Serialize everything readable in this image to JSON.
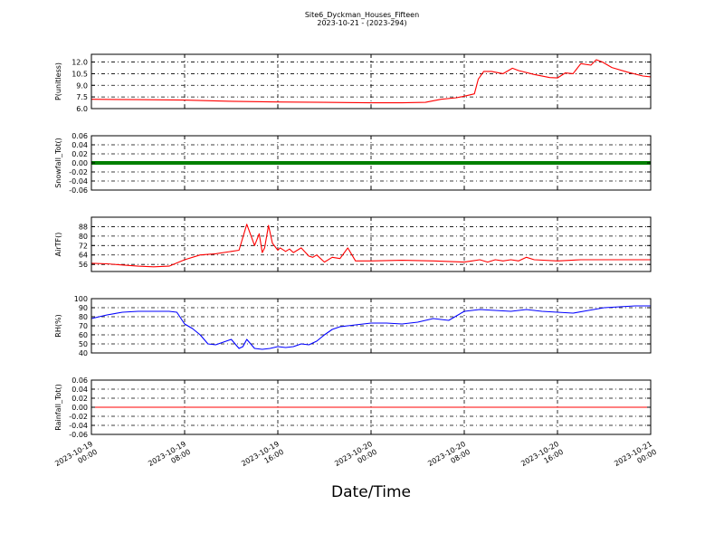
{
  "chart_data": [
    {
      "type": "line",
      "title": "Site6_Dyckman_Houses_Fifteen",
      "subtitle": "2023-10-21 - (2023-294)",
      "ylabel": "P(unitless)",
      "ylim": [
        6.0,
        13.0
      ],
      "yticks": [
        "6.0",
        "7.5",
        "9.0",
        "10.5",
        "12.0"
      ],
      "ytick_values": [
        6.0,
        7.5,
        9.0,
        10.5,
        12.0
      ],
      "grid": true,
      "color": "#ff0000",
      "series": [
        {
          "x": [
            0,
            6,
            12,
            18,
            24,
            30,
            36,
            40,
            43,
            45,
            47,
            48,
            49.3,
            49.8,
            50.5,
            51.5,
            53,
            54.2,
            55,
            57,
            59,
            60,
            61,
            62,
            63,
            64.3,
            65,
            65.8,
            67,
            69,
            71,
            72
          ],
          "y": [
            7.2,
            7.15,
            7.1,
            6.95,
            6.85,
            6.8,
            6.75,
            6.75,
            6.8,
            7.2,
            7.4,
            7.6,
            7.9,
            9.8,
            10.8,
            10.8,
            10.5,
            11.2,
            10.9,
            10.4,
            10.0,
            9.95,
            10.6,
            10.5,
            11.8,
            11.6,
            12.3,
            12.0,
            11.3,
            10.7,
            10.2,
            10.1
          ]
        }
      ]
    },
    {
      "type": "line",
      "ylabel": "Snowfall_Tot()",
      "ylim": [
        -0.06,
        0.06
      ],
      "yticks": [
        "-0.06",
        "-0.04",
        "-0.02",
        "0.00",
        "0.02",
        "0.04",
        "0.06"
      ],
      "ytick_values": [
        -0.06,
        -0.04,
        -0.02,
        0.0,
        0.02,
        0.04,
        0.06
      ],
      "grid": true,
      "color": "#008000",
      "series": [
        {
          "x": [
            0,
            72
          ],
          "y": [
            0.0,
            0.0
          ]
        }
      ]
    },
    {
      "type": "line",
      "ylabel": "AirTF()",
      "ylim": [
        50,
        96
      ],
      "yticks": [
        "56",
        "64",
        "72",
        "80",
        "88"
      ],
      "ytick_values": [
        56,
        64,
        72,
        80,
        88
      ],
      "grid": true,
      "color": "#ff0000",
      "series": [
        {
          "x": [
            0,
            2,
            4,
            6,
            8,
            10,
            12,
            14,
            16,
            18,
            19,
            20,
            21,
            21.6,
            22,
            22.3,
            22.8,
            23.3,
            24,
            24.3,
            25,
            25.5,
            26,
            27,
            28,
            28.5,
            29,
            30,
            31,
            32,
            33,
            34,
            35,
            36,
            40,
            44,
            48,
            49,
            50,
            51,
            52,
            53,
            54,
            55,
            56,
            57,
            60,
            63,
            66,
            69,
            72
          ],
          "y": [
            57,
            56.5,
            55.5,
            54.5,
            54,
            54.5,
            60,
            64,
            65,
            67,
            68,
            90,
            72,
            82,
            66,
            70,
            89,
            74,
            68,
            70,
            67,
            69,
            66,
            70,
            63,
            62,
            64,
            58,
            62,
            61,
            70,
            59,
            59,
            59,
            59.5,
            59,
            58,
            59,
            60,
            58,
            60,
            59,
            60,
            59,
            62,
            60,
            59,
            60,
            60,
            60,
            60
          ]
        }
      ]
    },
    {
      "type": "line",
      "ylabel": "RH(%)",
      "ylim": [
        40,
        100
      ],
      "yticks": [
        "40",
        "50",
        "60",
        "70",
        "80",
        "90",
        "100"
      ],
      "ytick_values": [
        40,
        50,
        60,
        70,
        80,
        90,
        100
      ],
      "grid": true,
      "color": "#0000ff",
      "series": [
        {
          "x": [
            0,
            2,
            4,
            6,
            8,
            10,
            11,
            12,
            13,
            14,
            15,
            16,
            17,
            18,
            19,
            19.5,
            20,
            21,
            22,
            23,
            24,
            25,
            26,
            27,
            28,
            29,
            30,
            31,
            32,
            33,
            34,
            36,
            38,
            40,
            42,
            44,
            45,
            46,
            48,
            50,
            52,
            54,
            56,
            58,
            60,
            62,
            64,
            66,
            68,
            70,
            72
          ],
          "y": [
            78,
            82,
            85,
            86,
            86,
            86,
            85,
            72,
            67,
            60,
            50,
            49,
            52,
            55,
            45,
            47,
            55,
            45,
            44,
            45,
            47,
            46,
            47,
            50,
            49,
            53,
            60,
            66,
            69,
            70,
            71,
            73,
            73,
            72,
            74,
            78,
            77,
            76,
            86,
            88,
            87,
            86,
            88,
            86,
            85,
            84,
            87,
            90,
            91,
            92,
            92
          ]
        }
      ]
    },
    {
      "type": "line",
      "ylabel": "Rainfall_Tot()",
      "ylim": [
        -0.06,
        0.06
      ],
      "yticks": [
        "-0.06",
        "-0.04",
        "-0.02",
        "0.00",
        "0.02",
        "0.04",
        "0.06"
      ],
      "ytick_values": [
        -0.06,
        -0.04,
        -0.02,
        0.0,
        0.02,
        0.04,
        0.06
      ],
      "grid": true,
      "color": "#ff0000",
      "series": [
        {
          "x": [
            0,
            72
          ],
          "y": [
            0.0,
            0.0
          ]
        }
      ]
    }
  ],
  "x_axis": {
    "label": "Date/Time",
    "xlim": [
      0,
      72
    ],
    "tick_values": [
      0,
      12,
      24,
      36,
      48,
      60,
      72
    ],
    "tick_labels": [
      [
        "2023-10-19",
        "00:00"
      ],
      [
        "2023-10-19",
        "08:00"
      ],
      [
        "2023-10-19",
        "16:00"
      ],
      [
        "2023-10-20",
        "00:00"
      ],
      [
        "2023-10-20",
        "08:00"
      ],
      [
        "2023-10-20",
        "16:00"
      ],
      [
        "2023-10-21",
        "00:00"
      ]
    ]
  }
}
